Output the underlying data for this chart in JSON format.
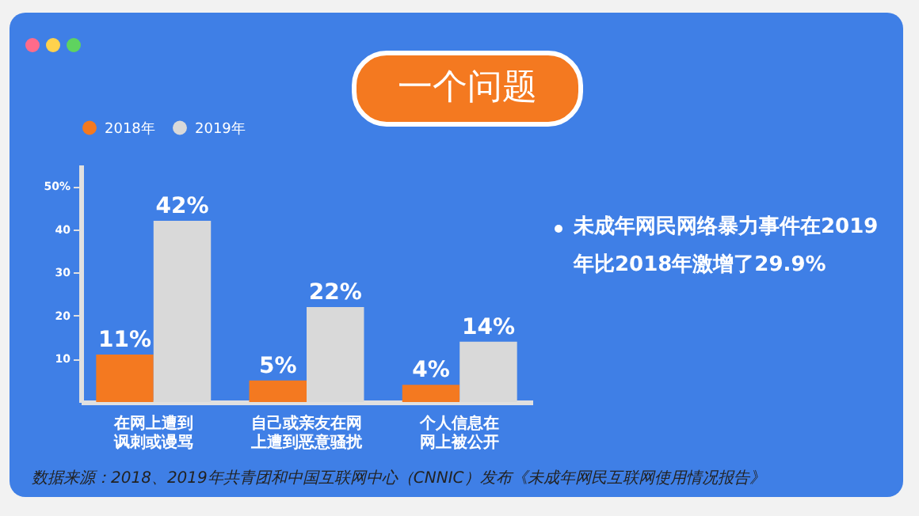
{
  "chart_data": {
    "type": "bar",
    "title": "一个问题",
    "categories": [
      "在网上遭到讽刺或谩骂",
      "自己或亲友在网上遭到恶意骚扰",
      "个人信息在网上被公开"
    ],
    "series": [
      {
        "name": "2018年",
        "color": "#f47920",
        "values": [
          11,
          5,
          4
        ]
      },
      {
        "name": "2019年",
        "color": "#d9d9d9",
        "values": [
          42,
          22,
          14
        ]
      }
    ],
    "value_labels": [
      [
        "11%",
        "5%",
        "4%"
      ],
      [
        "42%",
        "22%",
        "14%"
      ]
    ],
    "ylim": [
      0,
      55
    ],
    "yticks": [
      10,
      20,
      30,
      40,
      {
        "value": 50,
        "label": "50%"
      }
    ],
    "grid": false,
    "legend": "top left",
    "annotations": [
      "未成年网民网络暴力事件在2019年比2018年激增了29.9%",
      "数据来源：2018、2019年共青团和中国互联网中心（CNNIC）发布《未成年网民互联网使用情况报告》"
    ]
  }
}
